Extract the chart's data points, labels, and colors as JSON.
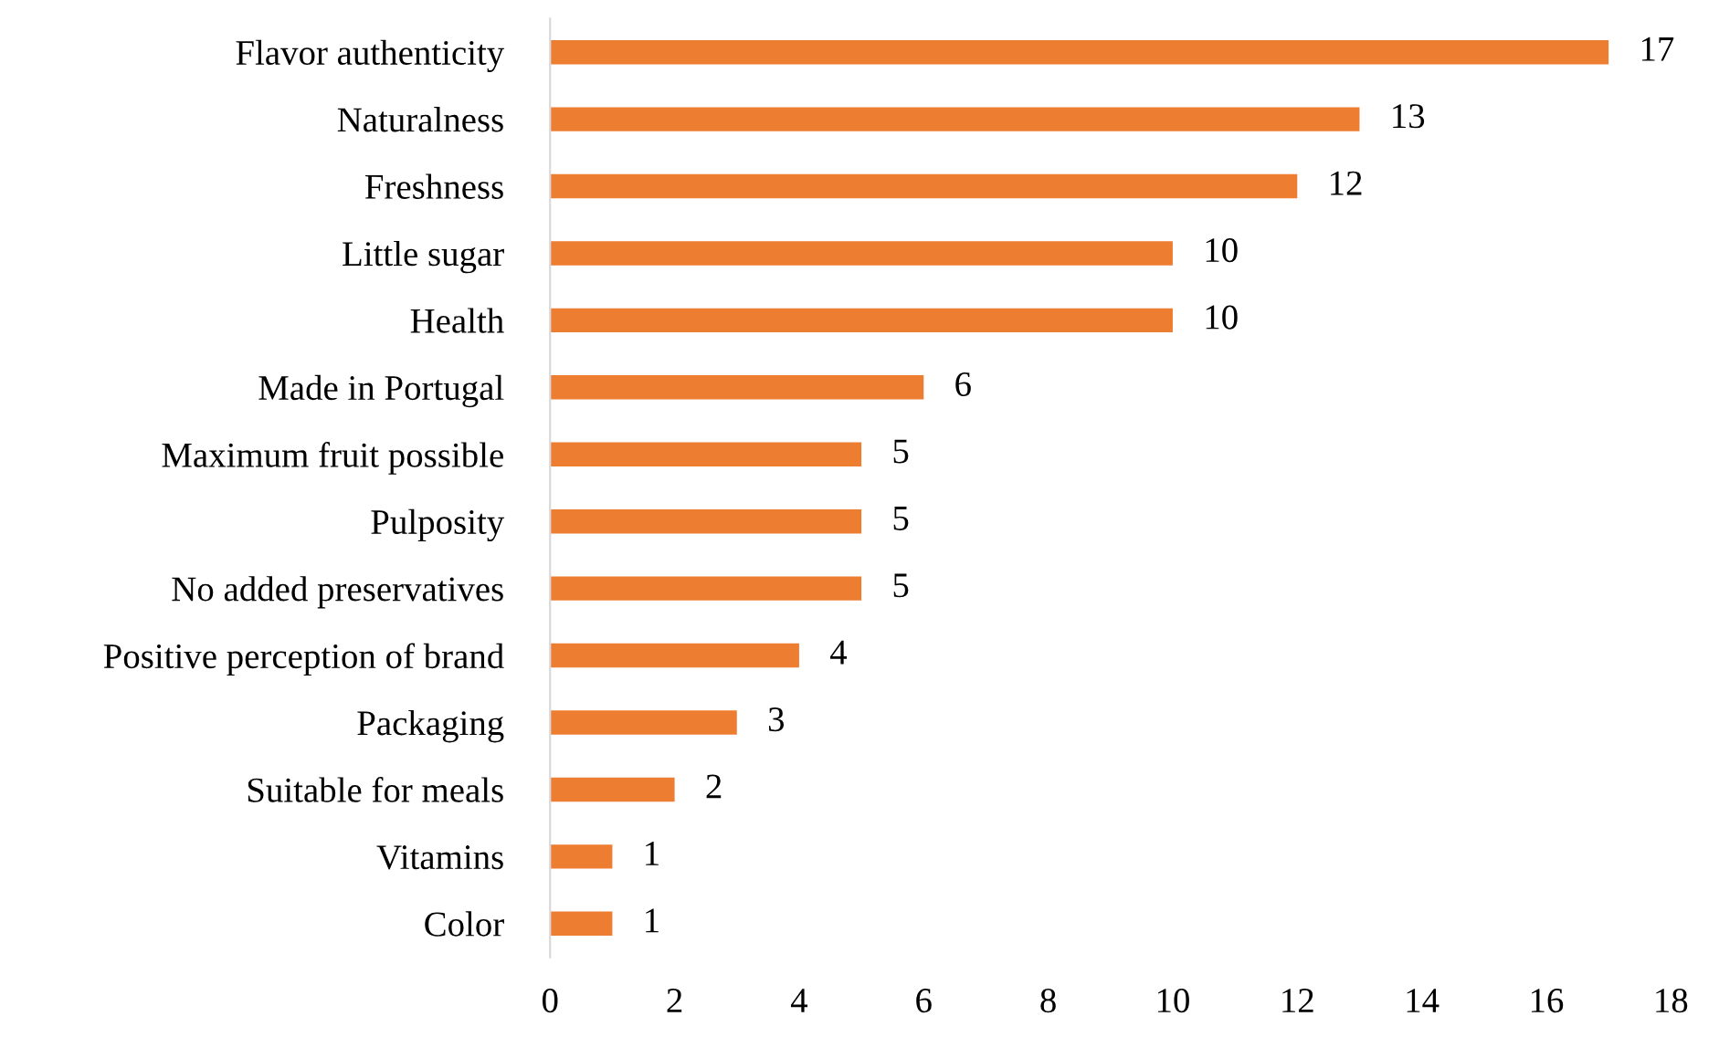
{
  "chart_data": {
    "type": "bar",
    "orientation": "horizontal",
    "categories": [
      "Flavor authenticity",
      "Naturalness",
      "Freshness",
      "Little sugar",
      "Health",
      "Made in Portugal",
      "Maximum fruit possible",
      "Pulposity",
      "No added preservatives",
      "Positive perception of brand",
      "Packaging",
      "Suitable for meals",
      "Vitamins",
      "Color"
    ],
    "values": [
      17,
      13,
      12,
      10,
      10,
      6,
      5,
      5,
      5,
      4,
      3,
      2,
      1,
      1
    ],
    "color": "#ed7d31",
    "xlim": [
      0,
      18
    ],
    "xticks": [
      0,
      2,
      4,
      6,
      8,
      10,
      12,
      14,
      16,
      18
    ],
    "data_labels": true,
    "grid": false,
    "legend": false
  }
}
